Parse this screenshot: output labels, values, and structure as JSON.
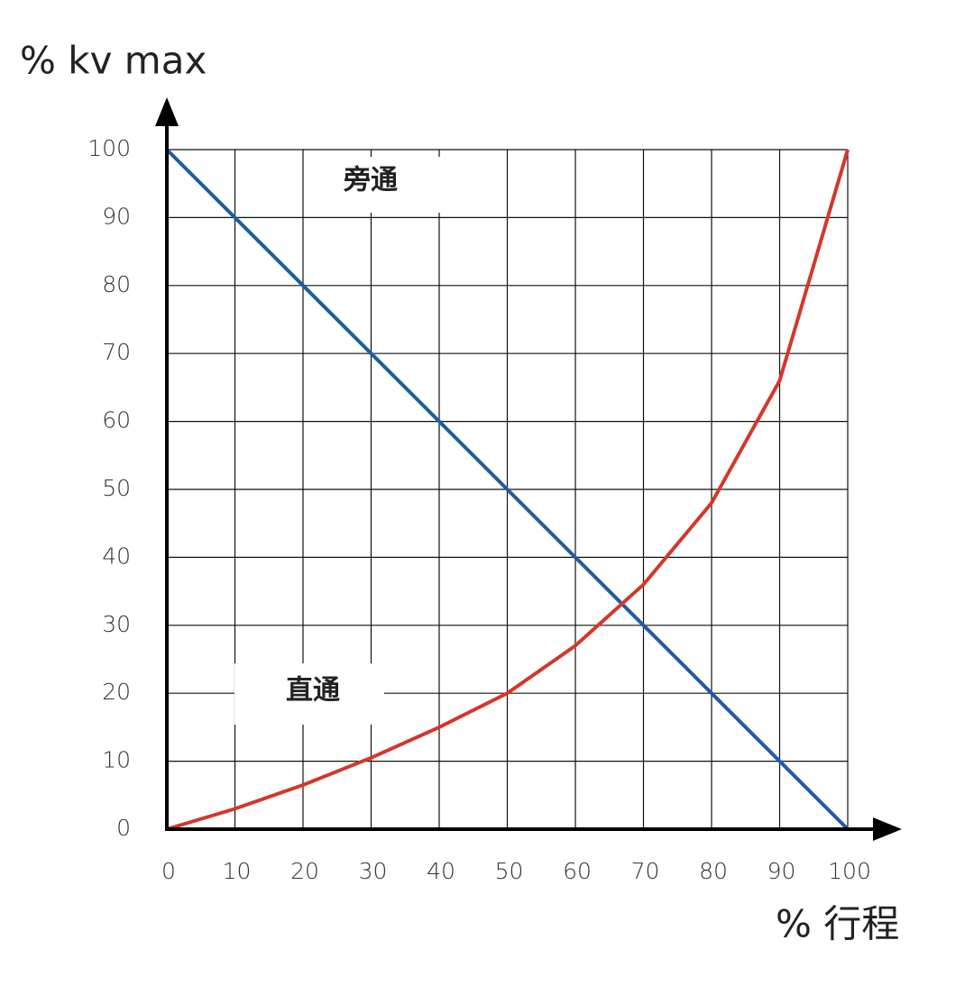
{
  "chart_data": {
    "type": "line",
    "y_label": "% kv max",
    "x_label": "% 行程",
    "x": [
      0,
      10,
      20,
      30,
      40,
      50,
      60,
      70,
      80,
      90,
      100
    ],
    "series": [
      {
        "name": "旁通",
        "color": "#1f5ca6",
        "values": [
          100,
          90,
          80,
          70,
          60,
          50,
          40,
          30,
          20,
          10,
          0
        ]
      },
      {
        "name": "直通",
        "color": "#d2382a",
        "values": [
          0,
          3,
          6.5,
          10.5,
          15,
          20,
          27,
          36,
          48,
          66,
          100
        ]
      }
    ],
    "xlim": [
      0,
      100
    ],
    "ylim": [
      0,
      100
    ],
    "xticks": [
      0,
      10,
      20,
      30,
      40,
      50,
      60,
      70,
      80,
      90,
      100
    ],
    "yticks": [
      0,
      10,
      20,
      30,
      40,
      50,
      60,
      70,
      80,
      90,
      100
    ],
    "grid": true
  }
}
